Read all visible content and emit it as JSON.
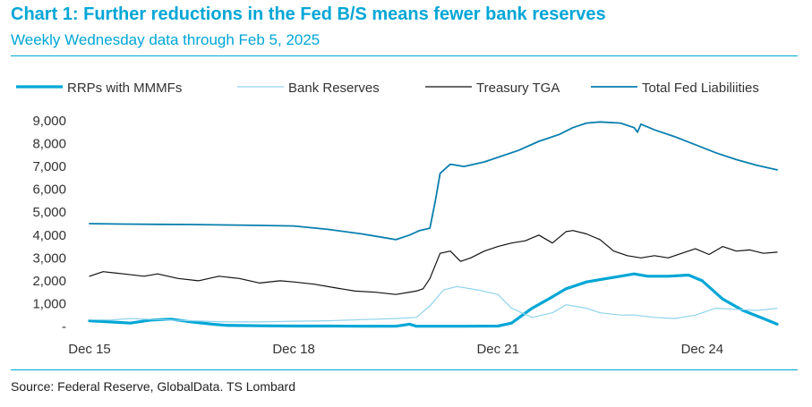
{
  "header": {
    "title": "Chart 1: Further reductions in the Fed B/S means fewer bank reserves",
    "subtitle": "Weekly Wednesday data through Feb 5, 2025"
  },
  "footer": {
    "source": "Source: Federal Reserve, GlobalData. TS Lombard"
  },
  "chart_data": {
    "type": "line",
    "title": "Chart 1: Further reductions in the Fed B/S means fewer bank reserves",
    "subtitle": "Weekly Wednesday data through Feb 5, 2025",
    "xlabel": "",
    "ylabel": "",
    "xlim": [
      2015.0,
      2025.1
    ],
    "ylim": [
      0,
      9000
    ],
    "x_ticks": [
      {
        "value": 2015.0,
        "label": "Dec 15"
      },
      {
        "value": 2018.0,
        "label": "Dec 18"
      },
      {
        "value": 2021.0,
        "label": "Dec 21"
      },
      {
        "value": 2024.0,
        "label": "Dec 24"
      }
    ],
    "y_ticks": [
      {
        "value": 0,
        "label": "-"
      },
      {
        "value": 1000,
        "label": "1,000"
      },
      {
        "value": 2000,
        "label": "2,000"
      },
      {
        "value": 3000,
        "label": "3,000"
      },
      {
        "value": 4000,
        "label": "4,000"
      },
      {
        "value": 5000,
        "label": "5,000"
      },
      {
        "value": 6000,
        "label": "6,000"
      },
      {
        "value": 7000,
        "label": "7,000"
      },
      {
        "value": 8000,
        "label": "8,000"
      },
      {
        "value": 9000,
        "label": "9,000"
      }
    ],
    "grid": false,
    "legend_position": "top",
    "series": [
      {
        "name": "RRPs with MMMFs",
        "color": "#00a6d6",
        "style": "thick",
        "x": [
          2015.0,
          2015.3,
          2015.6,
          2015.9,
          2016.2,
          2016.5,
          2016.8,
          2017.0,
          2017.5,
          2018.0,
          2018.5,
          2019.0,
          2019.5,
          2019.7,
          2019.8,
          2020.0,
          2020.5,
          2021.0,
          2021.2,
          2021.5,
          2021.8,
          2022.0,
          2022.3,
          2022.5,
          2022.8,
          2023.0,
          2023.2,
          2023.5,
          2023.8,
          2024.0,
          2024.3,
          2024.6,
          2024.9,
          2025.1
        ],
        "y": [
          250,
          200,
          150,
          280,
          320,
          200,
          100,
          50,
          30,
          20,
          20,
          10,
          10,
          100,
          10,
          10,
          10,
          20,
          150,
          800,
          1300,
          1650,
          1950,
          2050,
          2200,
          2300,
          2200,
          2200,
          2250,
          2000,
          1200,
          700,
          350,
          100
        ]
      },
      {
        "name": "Bank Reserves",
        "color": "#8fd3ec",
        "style": "thin",
        "x": [
          2015.0,
          2015.3,
          2015.6,
          2016.0,
          2016.5,
          2017.0,
          2017.5,
          2018.0,
          2018.5,
          2019.0,
          2019.5,
          2019.8,
          2020.0,
          2020.2,
          2020.4,
          2020.7,
          2021.0,
          2021.2,
          2021.5,
          2021.8,
          2022.0,
          2022.3,
          2022.5,
          2022.8,
          2023.0,
          2023.3,
          2023.6,
          2023.9,
          2024.2,
          2024.5,
          2024.8,
          2025.1
        ],
        "y": [
          300,
          280,
          350,
          300,
          250,
          200,
          200,
          230,
          250,
          300,
          350,
          400,
          900,
          1600,
          1750,
          1600,
          1400,
          800,
          400,
          600,
          950,
          800,
          600,
          500,
          500,
          400,
          350,
          500,
          800,
          750,
          700,
          800
        ]
      },
      {
        "name": "Treasury TGA",
        "color": "#111111",
        "style": "thin",
        "x": [
          2015.0,
          2015.2,
          2015.5,
          2015.8,
          2016.0,
          2016.3,
          2016.6,
          2016.9,
          2017.2,
          2017.5,
          2017.8,
          2018.0,
          2018.3,
          2018.6,
          2018.9,
          2019.2,
          2019.5,
          2019.8,
          2019.9,
          2020.0,
          2020.15,
          2020.3,
          2020.45,
          2020.6,
          2020.8,
          2021.0,
          2021.2,
          2021.4,
          2021.6,
          2021.8,
          2022.0,
          2022.1,
          2022.3,
          2022.5,
          2022.7,
          2022.9,
          2023.1,
          2023.3,
          2023.5,
          2023.7,
          2023.9,
          2024.1,
          2024.3,
          2024.5,
          2024.7,
          2024.9,
          2025.1
        ],
        "y": [
          2200,
          2400,
          2300,
          2200,
          2300,
          2100,
          2000,
          2200,
          2100,
          1900,
          2000,
          1950,
          1850,
          1700,
          1550,
          1500,
          1400,
          1550,
          1650,
          2100,
          3200,
          3300,
          2850,
          3000,
          3300,
          3500,
          3650,
          3750,
          4000,
          3650,
          4150,
          4200,
          4050,
          3800,
          3300,
          3100,
          3000,
          3100,
          3000,
          3200,
          3400,
          3150,
          3500,
          3300,
          3350,
          3200,
          3250
        ]
      },
      {
        "name": "Total Fed Liabiliities",
        "color": "#0a7fae",
        "style": "medium",
        "x": [
          2015.0,
          2015.5,
          2016.0,
          2016.5,
          2017.0,
          2017.5,
          2018.0,
          2018.5,
          2019.0,
          2019.3,
          2019.5,
          2019.7,
          2019.85,
          2020.0,
          2020.08,
          2020.15,
          2020.3,
          2020.5,
          2020.8,
          2021.0,
          2021.3,
          2021.6,
          2021.9,
          2022.1,
          2022.3,
          2022.5,
          2022.8,
          2023.0,
          2023.05,
          2023.1,
          2023.3,
          2023.6,
          2023.9,
          2024.2,
          2024.5,
          2024.8,
          2025.1
        ],
        "y": [
          4500,
          4480,
          4470,
          4460,
          4440,
          4420,
          4400,
          4250,
          4050,
          3900,
          3800,
          4000,
          4200,
          4300,
          5500,
          6700,
          7100,
          7000,
          7200,
          7400,
          7700,
          8100,
          8400,
          8700,
          8900,
          8950,
          8900,
          8700,
          8500,
          8850,
          8600,
          8300,
          7950,
          7600,
          7300,
          7050,
          6850
        ]
      }
    ]
  }
}
